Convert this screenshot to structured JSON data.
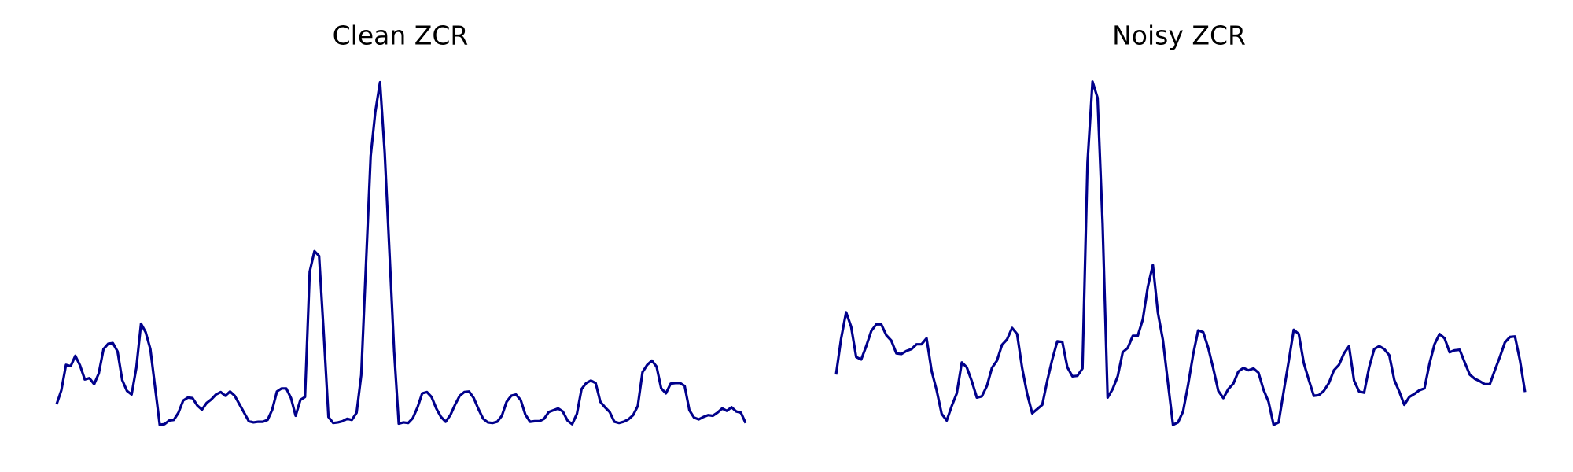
{
  "chart_data": [
    {
      "type": "line",
      "title": "Clean ZCR",
      "xlabel": "",
      "ylabel": "",
      "axes_visible": false,
      "grid": false,
      "color": "#00008b",
      "x_range": [
        0,
        120
      ],
      "ylim": [
        0.05,
        0.64
      ],
      "values": [
        0.097,
        0.12,
        0.162,
        0.16,
        0.177,
        0.161,
        0.138,
        0.14,
        0.13,
        0.148,
        0.188,
        0.197,
        0.198,
        0.184,
        0.137,
        0.119,
        0.113,
        0.157,
        0.23,
        0.216,
        0.188,
        0.126,
        0.063,
        0.064,
        0.07,
        0.071,
        0.083,
        0.103,
        0.108,
        0.107,
        0.095,
        0.088,
        0.099,
        0.105,
        0.113,
        0.117,
        0.111,
        0.118,
        0.111,
        0.097,
        0.083,
        0.069,
        0.067,
        0.068,
        0.068,
        0.071,
        0.088,
        0.118,
        0.123,
        0.123,
        0.107,
        0.078,
        0.104,
        0.109,
        0.316,
        0.35,
        0.342,
        0.212,
        0.076,
        0.066,
        0.067,
        0.069,
        0.073,
        0.071,
        0.083,
        0.145,
        0.327,
        0.507,
        0.58,
        0.629,
        0.513,
        0.35,
        0.185,
        0.065,
        0.067,
        0.066,
        0.074,
        0.092,
        0.115,
        0.117,
        0.109,
        0.09,
        0.076,
        0.068,
        0.079,
        0.096,
        0.111,
        0.117,
        0.118,
        0.107,
        0.089,
        0.073,
        0.067,
        0.066,
        0.068,
        0.078,
        0.101,
        0.111,
        0.113,
        0.104,
        0.08,
        0.068,
        0.069,
        0.069,
        0.073,
        0.084,
        0.087,
        0.09,
        0.085,
        0.07,
        0.064,
        0.081,
        0.122,
        0.132,
        0.136,
        0.132,
        0.101,
        0.092,
        0.084,
        0.068,
        0.066,
        0.068,
        0.072,
        0.079,
        0.094,
        0.15,
        0.162,
        0.169,
        0.159,
        0.123,
        0.115,
        0.131,
        0.132,
        0.132,
        0.127,
        0.087,
        0.075,
        0.072,
        0.076,
        0.079,
        0.078,
        0.083,
        0.09,
        0.086,
        0.092,
        0.085,
        0.083,
        0.066
      ]
    },
    {
      "type": "line",
      "title": "Noisy ZCR",
      "xlabel": "",
      "ylabel": "",
      "axes_visible": false,
      "grid": false,
      "color": "#00008b",
      "x_range": [
        0,
        120
      ],
      "ylim": [
        0.05,
        0.64
      ],
      "values": [
        0.146,
        0.205,
        0.249,
        0.225,
        0.175,
        0.171,
        0.193,
        0.218,
        0.229,
        0.229,
        0.211,
        0.202,
        0.181,
        0.18,
        0.185,
        0.188,
        0.196,
        0.196,
        0.206,
        0.152,
        0.12,
        0.081,
        0.07,
        0.094,
        0.115,
        0.166,
        0.158,
        0.135,
        0.108,
        0.11,
        0.127,
        0.157,
        0.169,
        0.195,
        0.204,
        0.223,
        0.213,
        0.157,
        0.114,
        0.082,
        0.089,
        0.096,
        0.136,
        0.171,
        0.201,
        0.2,
        0.158,
        0.143,
        0.144,
        0.156,
        0.496,
        0.63,
        0.603,
        0.395,
        0.108,
        0.122,
        0.143,
        0.183,
        0.19,
        0.21,
        0.21,
        0.237,
        0.291,
        0.327,
        0.248,
        0.203,
        0.132,
        0.063,
        0.067,
        0.085,
        0.129,
        0.179,
        0.219,
        0.216,
        0.19,
        0.156,
        0.119,
        0.107,
        0.122,
        0.131,
        0.151,
        0.157,
        0.153,
        0.156,
        0.149,
        0.121,
        0.101,
        0.063,
        0.067,
        0.118,
        0.168,
        0.22,
        0.213,
        0.165,
        0.137,
        0.111,
        0.112,
        0.119,
        0.132,
        0.153,
        0.162,
        0.181,
        0.193,
        0.136,
        0.118,
        0.116,
        0.158,
        0.188,
        0.193,
        0.188,
        0.178,
        0.137,
        0.118,
        0.096,
        0.109,
        0.114,
        0.12,
        0.123,
        0.164,
        0.196,
        0.213,
        0.206,
        0.183,
        0.186,
        0.187,
        0.166,
        0.146,
        0.139,
        0.135,
        0.13,
        0.13,
        0.153,
        0.175,
        0.199,
        0.208,
        0.209,
        0.169,
        0.117
      ]
    }
  ]
}
